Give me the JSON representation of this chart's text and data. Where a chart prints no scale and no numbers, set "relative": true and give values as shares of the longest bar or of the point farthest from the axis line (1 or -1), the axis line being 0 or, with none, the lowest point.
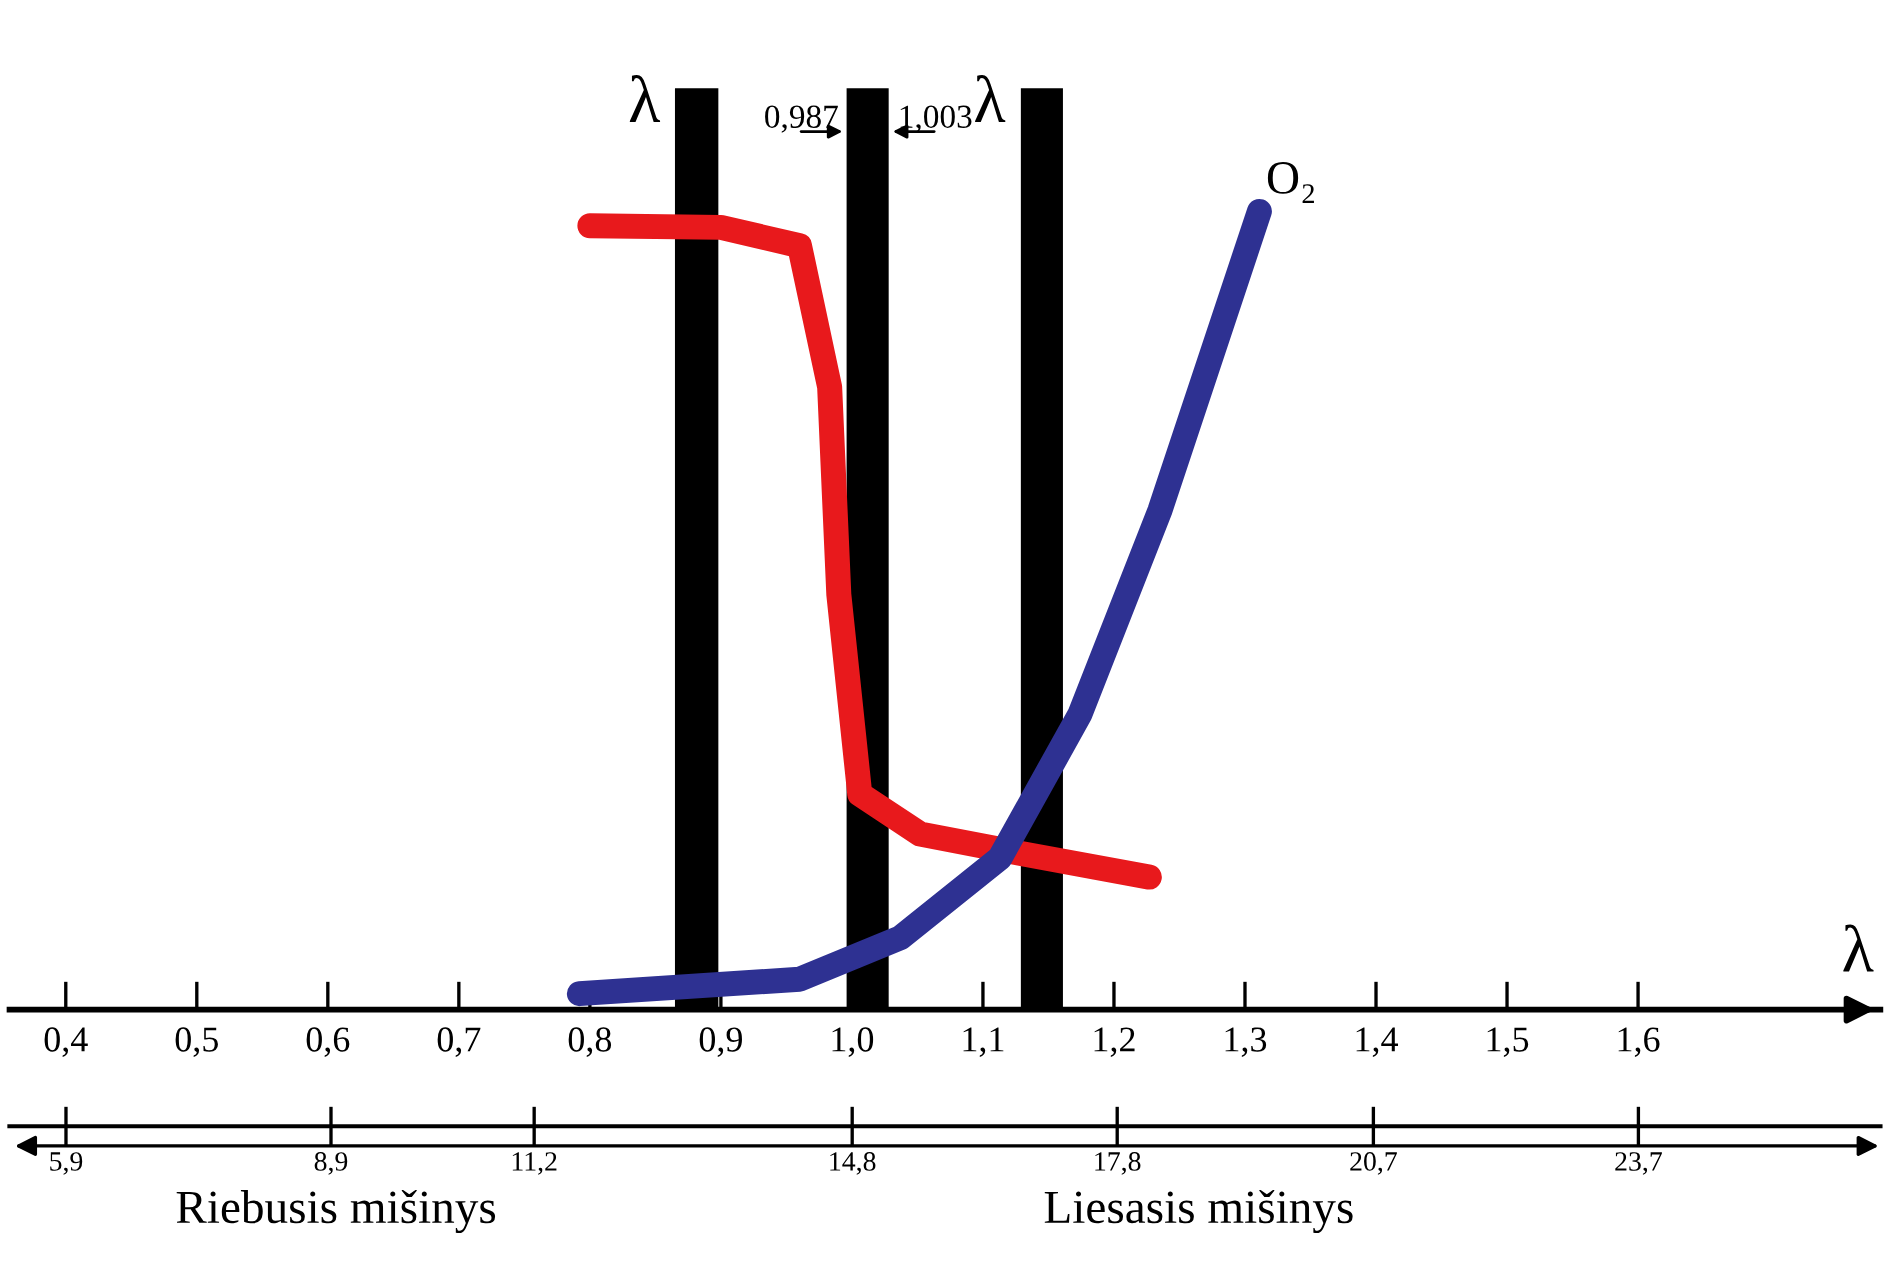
{
  "chart_data": {
    "type": "line",
    "relative": true,
    "xlabel": "λ",
    "xlim": [
      0.357,
      1.785
    ],
    "xticks": [
      {
        "value": 0.4,
        "label": "0,4"
      },
      {
        "value": 0.5,
        "label": "0,5"
      },
      {
        "value": 0.6,
        "label": "0,6"
      },
      {
        "value": 0.7,
        "label": "0,7"
      },
      {
        "value": 0.8,
        "label": "0,8"
      },
      {
        "value": 0.9,
        "label": "0,9"
      },
      {
        "value": 1.0,
        "label": "1,0"
      },
      {
        "value": 1.1,
        "label": "1,1"
      },
      {
        "value": 1.2,
        "label": "1,2"
      },
      {
        "value": 1.3,
        "label": "1,3"
      },
      {
        "value": 1.4,
        "label": "1,4"
      },
      {
        "value": 1.5,
        "label": "1,5"
      },
      {
        "value": 1.6,
        "label": "1,6"
      }
    ],
    "x2lim": [
      5.26,
      26.44
    ],
    "x2ticks": [
      {
        "value": 5.9,
        "label": "5,9"
      },
      {
        "value": 8.9,
        "label": "8,9"
      },
      {
        "value": 11.2,
        "label": "11,2"
      },
      {
        "value": 14.8,
        "label": "14,8"
      },
      {
        "value": 17.8,
        "label": "17,8"
      },
      {
        "value": 20.7,
        "label": "20,7"
      },
      {
        "value": 23.7,
        "label": "23,7"
      }
    ],
    "series": [
      {
        "color": "#e8191c",
        "x": [
          0.8,
          0.9,
          0.96,
          0.983,
          0.99,
          1.006,
          1.052,
          1.128,
          1.227
        ],
        "values": [
          0.982,
          0.98,
          0.957,
          0.78,
          0.52,
          0.27,
          0.22,
          0.196,
          0.166
        ]
      },
      {
        "name": "O₂",
        "color": "#2e3192",
        "x": [
          0.792,
          0.96,
          1.037,
          1.113,
          1.174,
          1.235,
          1.311
        ],
        "values": [
          0.02,
          0.038,
          0.09,
          0.19,
          0.37,
          0.625,
          1.0
        ]
      }
    ],
    "bands": [
      {
        "axis": "x",
        "from": 0.866,
        "to": 0.897,
        "color": "#000000"
      },
      {
        "axis": "x",
        "from": 0.997,
        "to": 1.027,
        "color": "#000000"
      },
      {
        "axis": "x",
        "from": 1.13,
        "to": 1.16,
        "color": "#000000"
      }
    ],
    "annotations": [
      "λ",
      "λ",
      "0,987",
      "1,003",
      "Riebusis mišinys",
      "Liesasis mišinys"
    ],
    "legend": false,
    "grid": false
  }
}
